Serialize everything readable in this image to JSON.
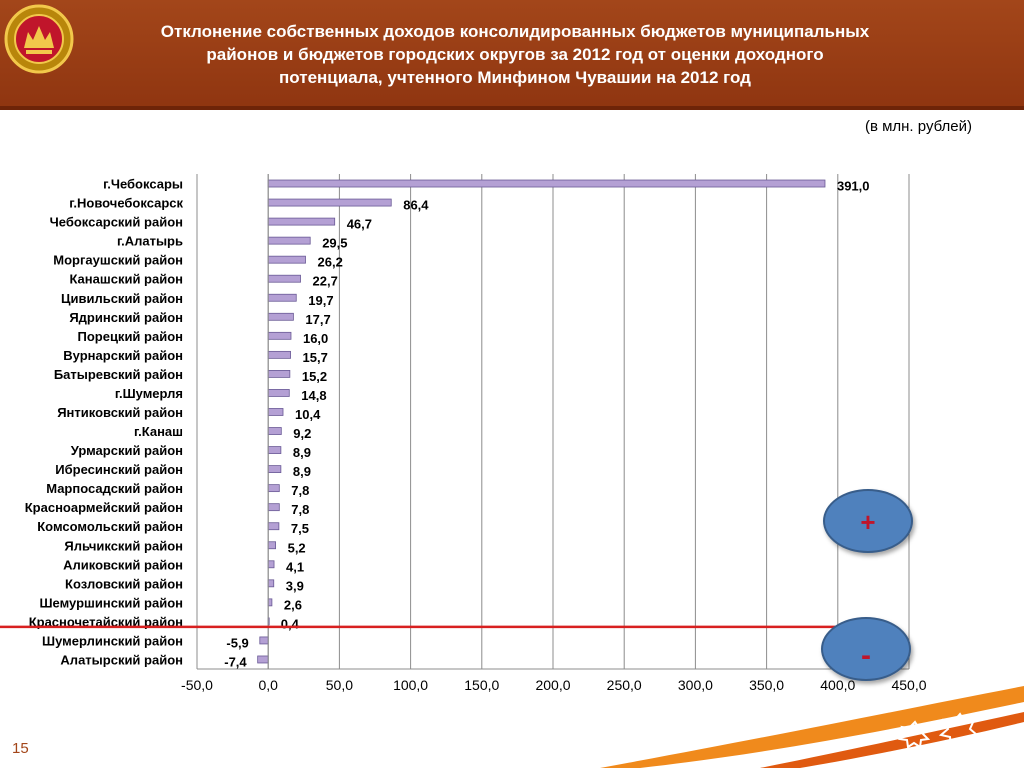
{
  "header": {
    "title": "Отклонение собственных доходов  консолидированных бюджетов муниципальных\nрайонов и бюджетов городских округов за 2012 год от оценки доходного\nпотенциала, учтенного Минфином Чувашии на 2012 год"
  },
  "units_label": "(в млн. рублей)",
  "page_number": "15",
  "badges": {
    "plus": "+",
    "minus": "-"
  },
  "colors": {
    "header": "#a3461a",
    "bar": "#b4a0d4",
    "bar_stroke": "#6a5a96",
    "badge": "#4f81bd",
    "red_line": "#d82020"
  },
  "chart_data": {
    "type": "bar",
    "orientation": "horizontal",
    "categories": [
      "г.Чебоксары",
      "г.Новочебоксарск",
      "Чебоксарский район",
      "г.Алатырь",
      "Моргаушский  район",
      "Канашский  район",
      "Цивильский  район",
      "Ядринский район",
      "Порецкий район",
      "Вурнарский  район",
      "Батыревский район",
      "г.Шумерля",
      "Янтиковский район",
      "г.Канаш",
      "Урмарский  район",
      "Ибресинский  район",
      "Марпосадский  район",
      "Красноармейский  район",
      "Комсомольский  район",
      "Яльчикский район",
      "Аликовский  район",
      "Козловский  район",
      "Шемуршинский  район",
      "Красночетайский  район",
      "Шумерлинский район",
      "Алатырский район"
    ],
    "values": [
      391.0,
      86.4,
      46.7,
      29.5,
      26.2,
      22.7,
      19.7,
      17.7,
      16.0,
      15.7,
      15.2,
      14.8,
      10.4,
      9.2,
      8.9,
      8.9,
      7.8,
      7.8,
      7.5,
      5.2,
      4.1,
      3.9,
      2.6,
      0.4,
      -5.9,
      -7.4
    ],
    "value_labels": [
      "391,0",
      "86,4",
      "46,7",
      "29,5",
      "26,2",
      "22,7",
      "19,7",
      "17,7",
      "16,0",
      "15,7",
      "15,2",
      "14,8",
      "10,4",
      "9,2",
      "8,9",
      "8,9",
      "7,8",
      "7,8",
      "7,5",
      "5,2",
      "4,1",
      "3,9",
      "2,6",
      "0,4",
      "-5,9",
      "-7,4"
    ],
    "xlim": [
      -50,
      450
    ],
    "xticks": [
      "-50,0",
      "0,0",
      "50,0",
      "100,0",
      "150,0",
      "200,0",
      "250,0",
      "300,0",
      "350,0",
      "400,0",
      "450,0"
    ],
    "grid": true,
    "xlabel": "",
    "ylabel": ""
  }
}
